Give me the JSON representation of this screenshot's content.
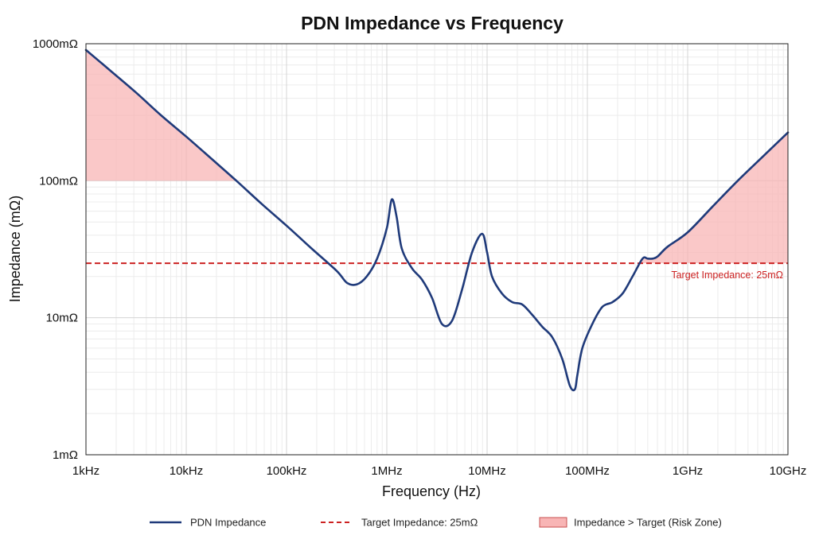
{
  "colors": {
    "series": "#1f3a7a",
    "target": "#cc2222",
    "risk_fill": "#f8b5b5",
    "risk_stroke": "#c85050",
    "grid_major": "#d4d4d4",
    "grid_minor": "#ececec"
  },
  "chart_data": {
    "type": "line",
    "title": "PDN Impedance vs Frequency",
    "xlabel": "Frequency (Hz)",
    "ylabel": "Impedance (mΩ)",
    "x_scale": "log",
    "y_scale": "log",
    "xlim": [
      1000,
      10000000000
    ],
    "ylim": [
      1,
      1000
    ],
    "grid": true,
    "legend_position": "bottom",
    "x_ticks": [
      {
        "value": 1000,
        "label": "1kHz"
      },
      {
        "value": 10000,
        "label": "10kHz"
      },
      {
        "value": 100000,
        "label": "100kHz"
      },
      {
        "value": 1000000,
        "label": "1MHz"
      },
      {
        "value": 10000000,
        "label": "10MHz"
      },
      {
        "value": 100000000,
        "label": "100MHz"
      },
      {
        "value": 1000000000,
        "label": "1GHz"
      },
      {
        "value": 10000000000,
        "label": "10GHz"
      }
    ],
    "y_ticks": [
      {
        "value": 1,
        "label": "1mΩ"
      },
      {
        "value": 10,
        "label": "10mΩ"
      },
      {
        "value": 100,
        "label": "100mΩ"
      },
      {
        "value": 1000,
        "label": "1000mΩ"
      }
    ],
    "series": [
      {
        "name": "PDN Impedance",
        "x": [
          1000,
          1780,
          3160,
          5620,
          10000,
          17800,
          31600,
          56200,
          100000,
          178000,
          316000,
          400000,
          500000,
          630000,
          800000,
          1000000,
          1120000,
          1250000,
          1410000,
          1780000,
          2240000,
          2820000,
          3550000,
          4470000,
          5620000,
          7080000,
          8910000,
          10000000,
          11200000,
          14100000,
          17800000,
          22400000,
          28200000,
          35500000,
          44700000,
          56200000,
          66800000,
          75000000,
          79400000,
          89100000,
          112000000,
          141000000,
          178000000,
          224000000,
          282000000,
          355000000,
          398000000,
          447000000,
          501000000,
          631000000,
          1000000000,
          1780000000,
          3160000000,
          5620000000,
          10000000000
        ],
        "values": [
          900,
          630,
          440,
          300,
          210,
          145,
          100,
          68,
          47,
          32,
          22,
          18,
          17.5,
          20,
          27,
          45,
          73,
          55,
          32,
          23,
          19,
          14,
          9,
          9.5,
          16,
          30,
          41,
          30,
          20,
          15,
          13,
          12.5,
          10.5,
          8.6,
          7.2,
          5,
          3.2,
          3,
          3.8,
          6,
          9,
          12,
          13,
          15,
          20,
          27,
          27,
          27,
          28,
          33,
          42,
          65,
          100,
          150,
          225
        ]
      }
    ],
    "target": {
      "value": 25,
      "label": "Target Impedance: 25mΩ"
    },
    "risk_zone": {
      "label": "Impedance > Target (Risk Zone)"
    },
    "legend": [
      {
        "kind": "line",
        "label": "PDN Impedance"
      },
      {
        "kind": "dashed",
        "label": "Target Impedance: 25mΩ"
      },
      {
        "kind": "fill",
        "label": "Impedance > Target (Risk Zone)"
      }
    ]
  }
}
